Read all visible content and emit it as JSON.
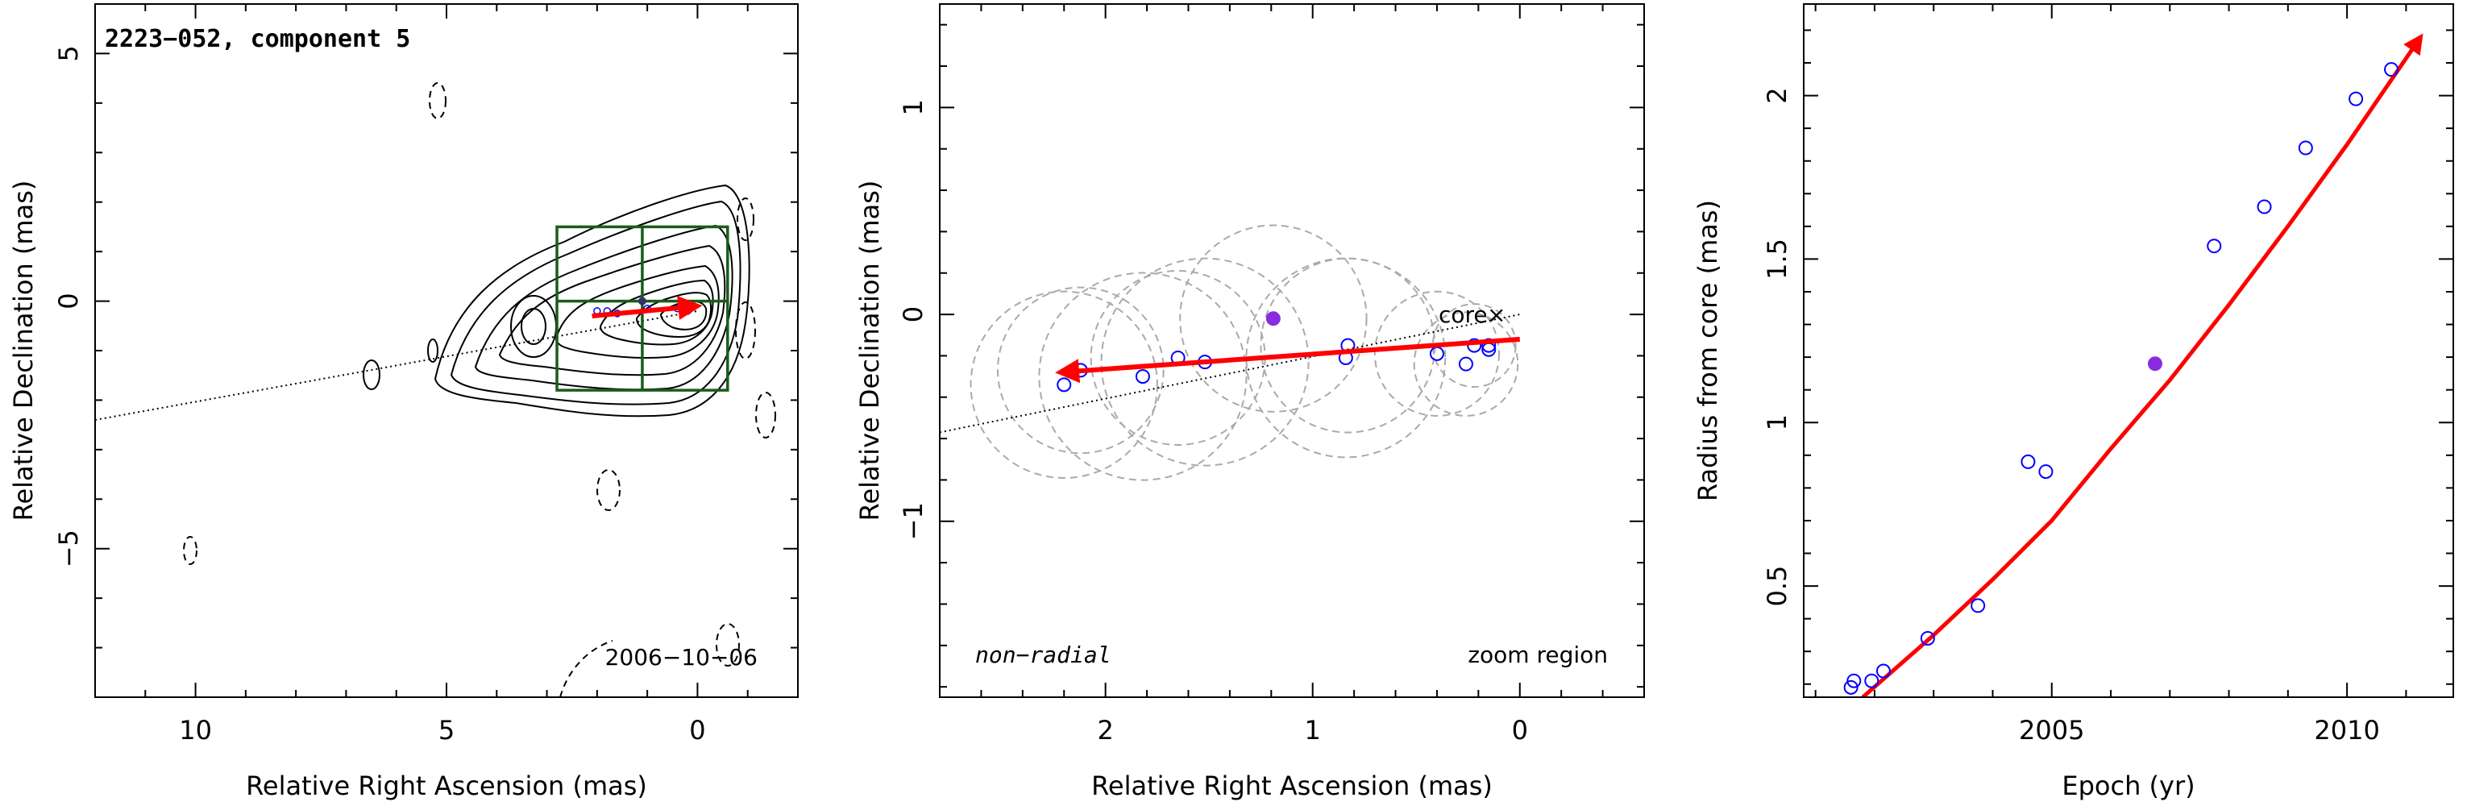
{
  "chart_data": [
    {
      "type": "scatter",
      "title": "2223−052, component 5",
      "xlabel": "Relative Right Ascension (mas)",
      "ylabel": "Relative Declination (mas)",
      "xlim": [
        12.0,
        -2.0
      ],
      "ylim": [
        -8.0,
        6.0
      ],
      "xticks": [
        10,
        5,
        0
      ],
      "yticks": [
        5,
        0,
        -5
      ],
      "xtick_labels": [
        "10",
        "5",
        "0"
      ],
      "ytick_labels": [
        "5",
        "0",
        "−5"
      ],
      "annotations": [
        "2006−10−06"
      ],
      "core": {
        "x": 0.0,
        "y": 0.0
      },
      "vector": {
        "from": [
          0.0,
          -0.1
        ],
        "to": [
          2.1,
          -0.3
        ],
        "color": "#ff0000"
      },
      "direction_line": {
        "from": [
          12.0,
          -2.4
        ],
        "to": [
          0.0,
          -0.2
        ],
        "style": "dotted"
      },
      "component_points": [
        [
          2.0,
          -0.2
        ],
        [
          1.8,
          -0.2
        ],
        [
          1.6,
          -0.25
        ],
        [
          1.0,
          -0.15
        ],
        [
          0.4,
          -0.15
        ],
        [
          0.2,
          -0.2
        ]
      ],
      "zoom_box": {
        "x": [
          2.8,
          -0.6
        ],
        "y": [
          -1.8,
          1.5
        ],
        "color": "#1a5c1a"
      },
      "contour_levels": 12
    },
    {
      "type": "scatter",
      "xlabel": "Relative Right Ascension (mas)",
      "ylabel": "Relative Declination (mas)",
      "xlim": [
        2.8,
        -0.6
      ],
      "ylim": [
        -1.85,
        1.5
      ],
      "xticks": [
        2,
        1,
        0
      ],
      "yticks": [
        1,
        0,
        -1
      ],
      "xtick_labels": [
        "2",
        "1",
        "0"
      ],
      "ytick_labels": [
        "1",
        "0",
        "−1"
      ],
      "core_label": "core",
      "core_marker": "×",
      "core": {
        "x": 0.0,
        "y": 0.0
      },
      "annotations": [
        "non−radial",
        "zoom region"
      ],
      "vector": {
        "from": [
          0.0,
          -0.12
        ],
        "to": [
          2.22,
          -0.28
        ],
        "color": "#ff0000"
      },
      "direction_line": {
        "from": [
          2.8,
          -0.57
        ],
        "to": [
          0.0,
          0.0
        ],
        "style": "dotted"
      },
      "points": [
        {
          "x": 2.2,
          "y": -0.34
        },
        {
          "x": 2.12,
          "y": -0.27
        },
        {
          "x": 1.82,
          "y": -0.3
        },
        {
          "x": 1.65,
          "y": -0.21
        },
        {
          "x": 1.52,
          "y": -0.23
        },
        {
          "x": 0.84,
          "y": -0.21
        },
        {
          "x": 0.83,
          "y": -0.15
        },
        {
          "x": 0.4,
          "y": -0.19
        },
        {
          "x": 0.26,
          "y": -0.24
        },
        {
          "x": 0.22,
          "y": -0.15
        },
        {
          "x": 0.15,
          "y": -0.17
        },
        {
          "x": 0.15,
          "y": -0.15
        }
      ],
      "highlight_point": {
        "x": 1.19,
        "y": -0.02
      },
      "component_circles": [
        {
          "x": 2.2,
          "y": -0.34,
          "r": 0.45
        },
        {
          "x": 2.12,
          "y": -0.27,
          "r": 0.4
        },
        {
          "x": 1.82,
          "y": -0.3,
          "r": 0.5
        },
        {
          "x": 1.65,
          "y": -0.21,
          "r": 0.42
        },
        {
          "x": 1.52,
          "y": -0.23,
          "r": 0.5
        },
        {
          "x": 1.19,
          "y": -0.02,
          "r": 0.45
        },
        {
          "x": 0.84,
          "y": -0.21,
          "r": 0.48
        },
        {
          "x": 0.83,
          "y": -0.15,
          "r": 0.42
        },
        {
          "x": 0.4,
          "y": -0.19,
          "r": 0.3
        },
        {
          "x": 0.26,
          "y": -0.24,
          "r": 0.25
        },
        {
          "x": 0.22,
          "y": -0.15,
          "r": 0.2
        }
      ]
    },
    {
      "type": "scatter",
      "xlabel": "Epoch (yr)",
      "ylabel": "Radius from core (mas)",
      "xlim": [
        2000.8,
        2011.8
      ],
      "ylim": [
        0.16,
        2.28
      ],
      "xticks": [
        2005,
        2010
      ],
      "yticks": [
        0.5,
        1,
        1.5,
        2
      ],
      "xtick_labels": [
        "2005",
        "2010"
      ],
      "ytick_labels": [
        "0.5",
        "1",
        "1.5",
        "2"
      ],
      "points": [
        {
          "x": 2001.6,
          "y": 0.19
        },
        {
          "x": 2001.65,
          "y": 0.21
        },
        {
          "x": 2001.95,
          "y": 0.21
        },
        {
          "x": 2002.15,
          "y": 0.24
        },
        {
          "x": 2002.9,
          "y": 0.34
        },
        {
          "x": 2003.75,
          "y": 0.44
        },
        {
          "x": 2004.6,
          "y": 0.88
        },
        {
          "x": 2004.9,
          "y": 0.85
        },
        {
          "x": 2007.75,
          "y": 1.54
        },
        {
          "x": 2008.6,
          "y": 1.66
        },
        {
          "x": 2009.3,
          "y": 1.84
        },
        {
          "x": 2010.15,
          "y": 1.99
        },
        {
          "x": 2010.75,
          "y": 2.08
        }
      ],
      "highlight_point": {
        "x": 2006.75,
        "y": 1.18
      },
      "fit_curve": {
        "color": "#ff0000",
        "x": [
          2001.8,
          2003.0,
          2004.0,
          2005.0,
          2006.0,
          2007.0,
          2008.0,
          2009.0,
          2010.0,
          2011.25
        ],
        "y": [
          0.16,
          0.35,
          0.52,
          0.7,
          0.92,
          1.13,
          1.36,
          1.6,
          1.85,
          2.18
        ]
      }
    }
  ]
}
